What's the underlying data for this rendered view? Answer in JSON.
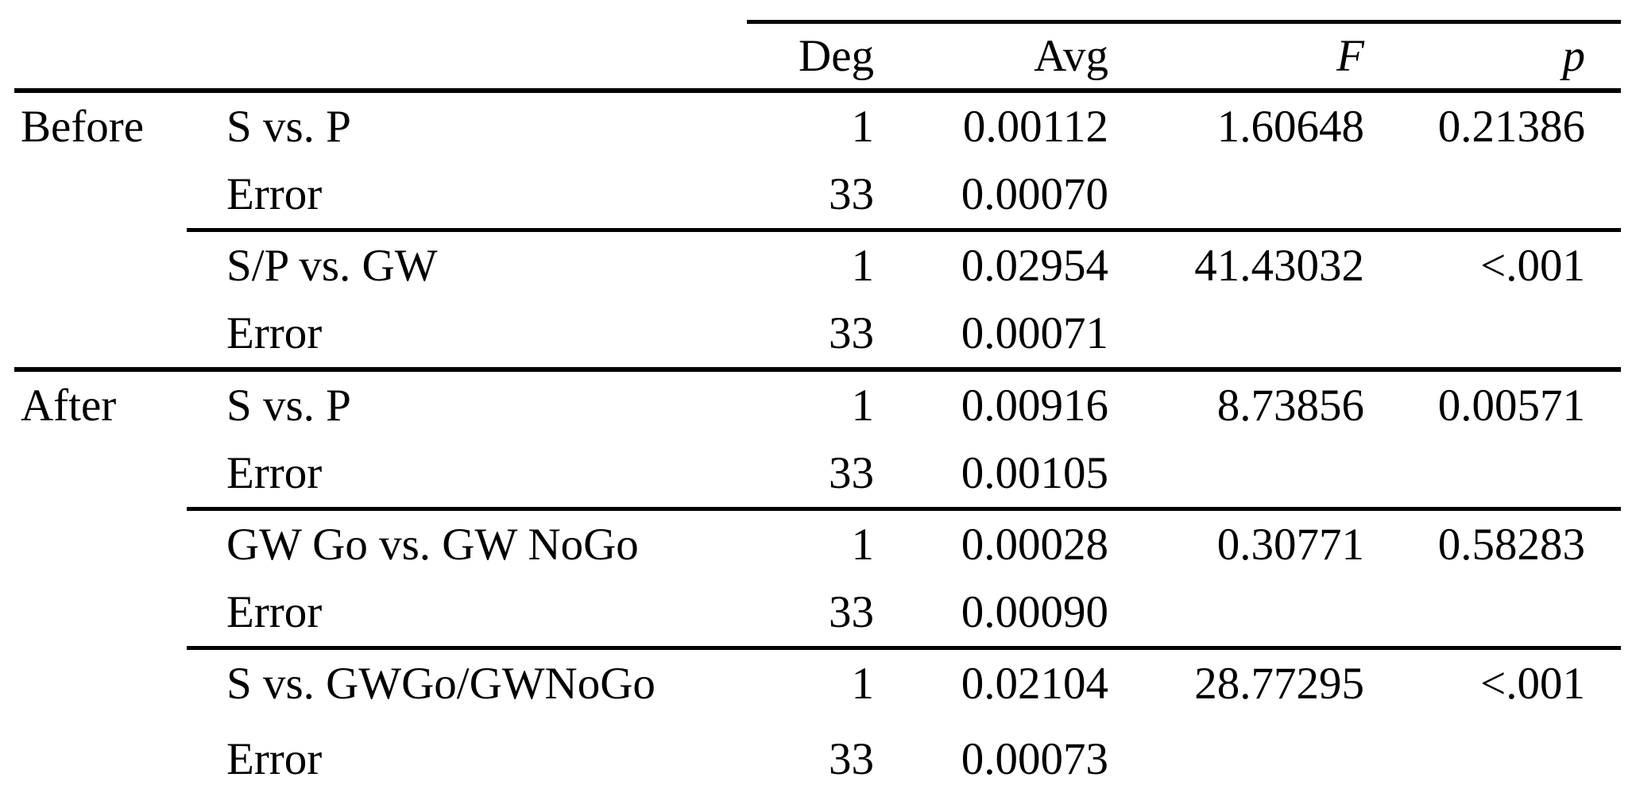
{
  "table": {
    "header": {
      "deg": "Deg",
      "avg": "Avg",
      "f": "F",
      "p": "p"
    },
    "rows": [
      {
        "group": "Before",
        "contrast": "S vs. P",
        "deg": "1",
        "avg": "0.00112",
        "f": "1.60648",
        "p": "0.21386"
      },
      {
        "group": "",
        "contrast": "Error",
        "deg": "33",
        "avg": "0.00070",
        "f": "",
        "p": ""
      },
      {
        "group": "",
        "contrast": "S/P vs. GW",
        "deg": "1",
        "avg": "0.02954",
        "f": "41.43032",
        "p": "<.001"
      },
      {
        "group": "",
        "contrast": "Error",
        "deg": "33",
        "avg": "0.00071",
        "f": "",
        "p": ""
      },
      {
        "group": "After",
        "contrast": "S vs. P",
        "deg": "1",
        "avg": "0.00916",
        "f": "8.73856",
        "p": "0.00571"
      },
      {
        "group": "",
        "contrast": "Error",
        "deg": "33",
        "avg": "0.00105",
        "f": "",
        "p": ""
      },
      {
        "group": "",
        "contrast": "GW Go vs. GW NoGo",
        "deg": "1",
        "avg": "0.00028",
        "f": "0.30771",
        "p": "0.58283"
      },
      {
        "group": "",
        "contrast": "Error",
        "deg": "33",
        "avg": "0.00090",
        "f": "",
        "p": ""
      },
      {
        "group": "",
        "contrast": "S vs. GWGo/GWNoGo",
        "deg": "1",
        "avg": "0.02104",
        "f": "28.77295",
        "p": "<.001"
      },
      {
        "group": "",
        "contrast": "Error",
        "deg": "33",
        "avg": "0.00073",
        "f": "",
        "p": ""
      }
    ]
  }
}
